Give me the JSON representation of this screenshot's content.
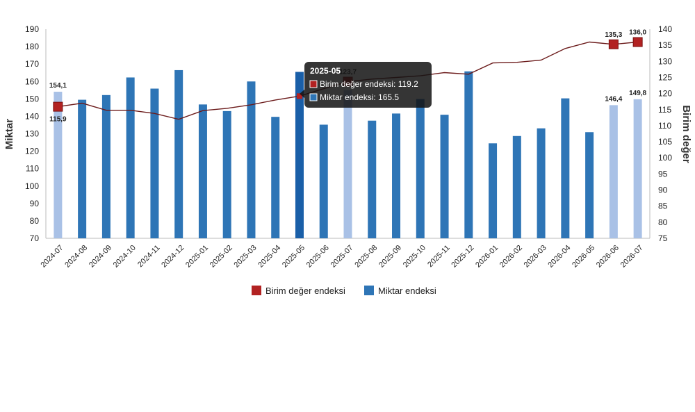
{
  "chart_data": {
    "type": "bar+line",
    "categories": [
      "2024-07",
      "2024-08",
      "2024-09",
      "2024-10",
      "2024-11",
      "2024-12",
      "2025-01",
      "2025-02",
      "2025-03",
      "2025-04",
      "2025-05",
      "2025-06",
      "2025-07",
      "2025-08",
      "2025-09",
      "2025-10",
      "2025-11",
      "2025-12",
      "2026-01",
      "2026-02",
      "2026-03",
      "2026-04",
      "2026-05",
      "2026-06",
      "2026-07"
    ],
    "ylabel": "Miktar",
    "y2label": "Birim değer",
    "ylim": [
      70,
      190
    ],
    "y2lim": [
      75,
      140
    ],
    "yticks": [
      70,
      80,
      90,
      100,
      110,
      120,
      130,
      140,
      150,
      160,
      170,
      180,
      190
    ],
    "y2ticks": [
      75,
      80,
      85,
      90,
      95,
      100,
      105,
      110,
      115,
      120,
      125,
      130,
      135,
      140
    ],
    "grid": false,
    "legend_position": "bottom",
    "series": [
      {
        "name": "Miktar endeksi",
        "kind": "bar",
        "axis": "left",
        "color": "#2e75b6",
        "highlight_color": "#a9c1e6",
        "highlighted": [
          0,
          12,
          23,
          24
        ],
        "values": [
          154.1,
          149.5,
          152.2,
          162.3,
          155.9,
          166.5,
          146.8,
          143.0,
          160.0,
          139.7,
          165.5,
          135.2,
          155.0,
          137.5,
          141.6,
          149.9,
          140.9,
          165.8,
          124.5,
          128.7,
          133.1,
          150.3,
          130.9,
          146.4,
          149.8
        ]
      },
      {
        "name": "Birim değer endeksi",
        "kind": "line",
        "axis": "right",
        "color": "#6b1a1a",
        "marker_color": "#b22222",
        "marker_indices": [
          0,
          12,
          23,
          24
        ],
        "values": [
          115.9,
          117.0,
          114.8,
          114.8,
          113.8,
          112.0,
          114.7,
          115.4,
          116.5,
          118.0,
          119.2,
          121.5,
          123.7,
          124.5,
          125.0,
          125.5,
          126.5,
          126.0,
          129.5,
          129.7,
          130.4,
          134.0,
          136.0,
          135.3,
          136.0
        ]
      }
    ],
    "data_labels": [
      {
        "series": "Miktar endeksi",
        "index": 0,
        "text": "154,1"
      },
      {
        "series": "Miktar endeksi",
        "index": 23,
        "text": "146,4"
      },
      {
        "series": "Miktar endeksi",
        "index": 24,
        "text": "149,8"
      },
      {
        "series": "Birim değer endeksi",
        "index": 0,
        "text": "115,9"
      },
      {
        "series": "Birim değer endeksi",
        "index": 12,
        "text": "123,7"
      },
      {
        "series": "Birim değer endeksi",
        "index": 23,
        "text": "135,3"
      },
      {
        "series": "Birim değer endeksi",
        "index": 24,
        "text": "136,0"
      }
    ],
    "tooltip": {
      "index": 10,
      "title": "2025-05",
      "lines": [
        {
          "series": "Birim değer endeksi",
          "text": "Birim değer endeksi: 119.2"
        },
        {
          "series": "Miktar endeksi",
          "text": "Miktar endeksi: 165.5"
        }
      ]
    },
    "legend": [
      "Birim değer endeksi",
      "Miktar endeksi"
    ]
  }
}
